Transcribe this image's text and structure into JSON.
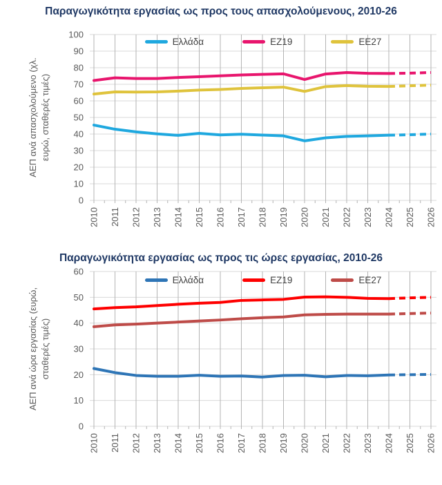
{
  "page_background": "#FFFFFF",
  "text_colors": {
    "title": "#1F3864",
    "axis": "#595959",
    "legend": "#404040"
  },
  "grid_colors": {
    "horizontal": "#D9D9D9",
    "vertical": "#B3B3B3",
    "ticks": "#B3B3B3"
  },
  "chart_data": [
    {
      "type": "line",
      "title": "Παραγωγικότητα εργασίας ως προς τους απασχολούμενους, 2010-26",
      "ylabel": "ΑΕΠ ανά απασχολούμενο (χλ. ευρώ, σταθερές τιμές)",
      "ylabel_lines": [
        "ΑΕΠ ανά απασχολούμενο (χλ.",
        "ευρώ, σταθερές τιμές)"
      ],
      "xlabel": "",
      "categories": [
        "2010",
        "2011",
        "2012",
        "2013",
        "2014",
        "2015",
        "2016",
        "2017",
        "2018",
        "2019",
        "2020",
        "2021",
        "2022",
        "2023",
        "2024",
        "2025",
        "2026"
      ],
      "ylim": [
        0,
        100
      ],
      "ytick_step": 10,
      "grid": true,
      "legend_position": "top",
      "forecast_from_index": 14,
      "series": [
        {
          "name": "Ελλάδα",
          "color": "#1FA8DF",
          "values": [
            45.4,
            42.9,
            41.3,
            40.1,
            39.2,
            40.4,
            39.5,
            39.9,
            39.4,
            38.9,
            35.9,
            37.7,
            38.6,
            38.9,
            39.3,
            39.6,
            40.0
          ]
        },
        {
          "name": "ΕΖ19",
          "color": "#E8156D",
          "values": [
            72.3,
            73.9,
            73.5,
            73.5,
            74.1,
            74.6,
            75.1,
            75.6,
            76.0,
            76.3,
            72.9,
            76.2,
            77.1,
            76.6,
            76.5,
            76.7,
            77.1
          ]
        },
        {
          "name": "ΕΕ27",
          "color": "#DFC33C",
          "values": [
            64.1,
            65.4,
            65.3,
            65.4,
            65.9,
            66.5,
            66.9,
            67.5,
            67.9,
            68.3,
            65.7,
            68.6,
            69.2,
            68.8,
            68.7,
            69.1,
            69.5
          ]
        }
      ]
    },
    {
      "type": "line",
      "title": "Παραγωγικότητα εργασίας ως προς τις ώρες εργασίας, 2010-26",
      "ylabel": "ΑΕΠ ανά ώρα εργασίας (ευρώ, σταθερές τιμές)",
      "ylabel_lines": [
        "ΑΕΠ ανά ώρα εργασίας (ευρώ,",
        "σταθερές τιμές)"
      ],
      "xlabel": "",
      "categories": [
        "2010",
        "2011",
        "2012",
        "2013",
        "2014",
        "2015",
        "2016",
        "2017",
        "2018",
        "2019",
        "2020",
        "2021",
        "2022",
        "2023",
        "2024",
        "2025",
        "2026"
      ],
      "ylim": [
        0,
        60
      ],
      "ytick_step": 10,
      "grid": true,
      "legend_position": "top",
      "forecast_from_index": 14,
      "series": [
        {
          "name": "Ελλάδα",
          "color": "#2E75B6",
          "values": [
            22.4,
            20.8,
            19.7,
            19.4,
            19.4,
            19.8,
            19.4,
            19.5,
            19.1,
            19.7,
            19.8,
            19.2,
            19.7,
            19.6,
            19.9,
            20.0,
            20.1
          ]
        },
        {
          "name": "ΕΖ19",
          "color": "#FE0000",
          "values": [
            45.5,
            46.0,
            46.3,
            46.8,
            47.3,
            47.7,
            48.0,
            48.8,
            49.0,
            49.2,
            50.1,
            50.2,
            50.0,
            49.6,
            49.5,
            49.8,
            50.0
          ]
        },
        {
          "name": "ΕΕ27",
          "color": "#BE4B48",
          "values": [
            38.6,
            39.3,
            39.6,
            40.0,
            40.4,
            40.8,
            41.2,
            41.7,
            42.1,
            42.4,
            43.2,
            43.4,
            43.5,
            43.5,
            43.5,
            43.7,
            43.9
          ]
        }
      ]
    }
  ]
}
